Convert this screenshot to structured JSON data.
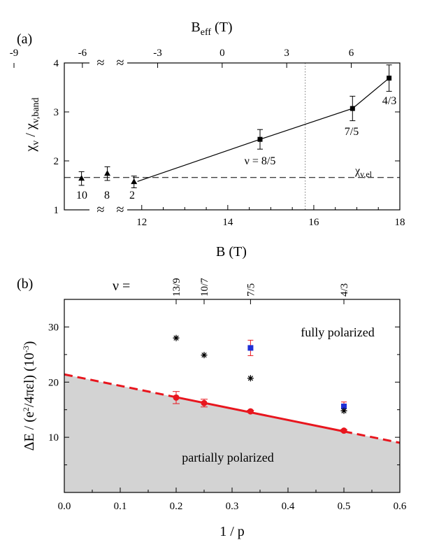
{
  "chart_data": [
    {
      "panel": "(a)",
      "type": "scatter",
      "xlabel": "B (T)",
      "ylabel_main": "χ",
      "ylabel_sub": "v",
      "ylabel_sep": " / χ",
      "ylabel_sub2": "v,band",
      "top_xlabel_main": "B",
      "top_xlabel_sub": "eff",
      "top_xlabel_unit": " (T)",
      "xlim": [
        10.2,
        18
      ],
      "ylim": [
        1,
        4
      ],
      "x_ticks": [
        12,
        14,
        16,
        18
      ],
      "y_ticks": [
        1,
        2,
        3,
        4
      ],
      "top_ticks": [
        {
          "label": "-9",
          "x": 9.03
        },
        {
          "label": "-6",
          "x": 10.62
        },
        {
          "label": "-3",
          "x": 12.37
        },
        {
          "label": "0",
          "x": 13.87
        },
        {
          "label": "3",
          "x": 15.37
        },
        {
          "label": "6",
          "x": 16.87
        }
      ],
      "axis_break": "≈",
      "vertical_dotted_line_x": 15.8,
      "reference_line": {
        "y": 1.66,
        "label_main": "χ",
        "label_sub": "v,el"
      },
      "triangle_points": [
        {
          "x": 10.6,
          "y": 1.64,
          "err": 0.14,
          "label": "10"
        },
        {
          "x": 11.2,
          "y": 1.74,
          "err": 0.14,
          "label": "8"
        },
        {
          "x": 11.82,
          "y": 1.57,
          "err": 0.12,
          "label": "2"
        }
      ],
      "square_points": [
        {
          "x": 14.75,
          "y": 2.44,
          "err": 0.2,
          "label": "ν = 8/5"
        },
        {
          "x": 16.9,
          "y": 3.07,
          "err": 0.25,
          "label": "7/5"
        },
        {
          "x": 17.75,
          "y": 3.69,
          "err": 0.27,
          "label": "4/3"
        }
      ],
      "fit_line": [
        [
          11.9,
          1.58
        ],
        [
          14.75,
          2.44
        ],
        [
          16.9,
          3.07
        ],
        [
          17.75,
          3.69
        ]
      ]
    },
    {
      "panel": "(b)",
      "type": "scatter",
      "xlabel": "1 / p",
      "ylabel_main": "ΔE / (e",
      "ylabel_sup": "2",
      "ylabel_rest": "/4πεl)  (10",
      "ylabel_sup2": "-3",
      "ylabel_end": ")",
      "xlim": [
        0,
        0.6
      ],
      "ylim": [
        0,
        35
      ],
      "x_ticks": [
        0.0,
        0.1,
        0.2,
        0.3,
        0.4,
        0.5,
        0.6
      ],
      "y_ticks": [
        10,
        20,
        30
      ],
      "nu_prefix": "ν =",
      "nu_ticks": [
        {
          "x": 0.2,
          "label": "13/9"
        },
        {
          "x": 0.25,
          "label": "10/7"
        },
        {
          "x": 0.333,
          "label": "7/5"
        },
        {
          "x": 0.5,
          "label": "4/3"
        }
      ],
      "red_points": [
        {
          "x": 0.2,
          "y": 17.2,
          "err": 1.1
        },
        {
          "x": 0.25,
          "y": 16.2,
          "err": 0.7
        },
        {
          "x": 0.333,
          "y": 14.7,
          "err": 0.2
        },
        {
          "x": 0.5,
          "y": 11.2,
          "err": 0.2
        }
      ],
      "blue_points": [
        {
          "x": 0.333,
          "y": 26.2,
          "err": 1.4
        },
        {
          "x": 0.5,
          "y": 15.6,
          "err": 0.8
        }
      ],
      "star_points": [
        {
          "x": 0.2,
          "y": 28.0
        },
        {
          "x": 0.25,
          "y": 24.9
        },
        {
          "x": 0.333,
          "y": 20.7
        },
        {
          "x": 0.5,
          "y": 14.8
        }
      ],
      "boundary_line": {
        "x0": 0,
        "y0": 21.4,
        "x1": 0.6,
        "y1": 9.0,
        "solid_from": 0.2,
        "solid_to": 0.5
      },
      "region_labels": {
        "upper": "fully polarized",
        "lower": "partially polarized"
      },
      "colors": {
        "red": "#e8161e",
        "blue": "#1f2fd6",
        "shade": "#d3d3d3"
      }
    }
  ]
}
